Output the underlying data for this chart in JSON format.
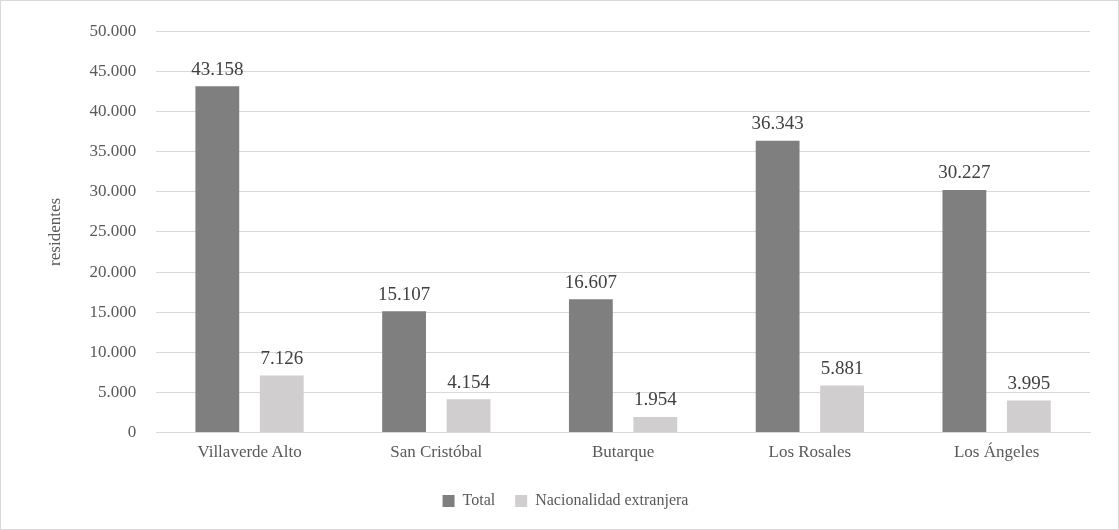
{
  "chart_data": {
    "type": "bar",
    "ylabel": "residentes",
    "categories": [
      "Villaverde Alto",
      "San Cristóbal",
      "Butarque",
      "Los Rosales",
      "Los Ángeles"
    ],
    "series": [
      {
        "name": "Total",
        "color": "#7f7f7f",
        "values": [
          43158,
          15107,
          16607,
          36343,
          30227
        ],
        "value_labels": [
          "43.158",
          "15.107",
          "16.607",
          "36.343",
          "30.227"
        ]
      },
      {
        "name": "Nacionalidad extranjera",
        "color": "#d0cece",
        "values": [
          7126,
          4154,
          1954,
          5881,
          3995
        ],
        "value_labels": [
          "7.126",
          "4.154",
          "1.954",
          "5.881",
          "3.995"
        ]
      }
    ],
    "ylim": [
      0,
      50000
    ],
    "yticks": [
      {
        "value": 0,
        "label": "0"
      },
      {
        "value": 5000,
        "label": "5.000"
      },
      {
        "value": 10000,
        "label": "10.000"
      },
      {
        "value": 15000,
        "label": "15.000"
      },
      {
        "value": 20000,
        "label": "20.000"
      },
      {
        "value": 25000,
        "label": "25.000"
      },
      {
        "value": 30000,
        "label": "30.000"
      },
      {
        "value": 35000,
        "label": "35.000"
      },
      {
        "value": 40000,
        "label": "40.000"
      },
      {
        "value": 45000,
        "label": "45.000"
      },
      {
        "value": 50000,
        "label": "50.000"
      }
    ],
    "grid": "y",
    "legend": "bottom"
  }
}
